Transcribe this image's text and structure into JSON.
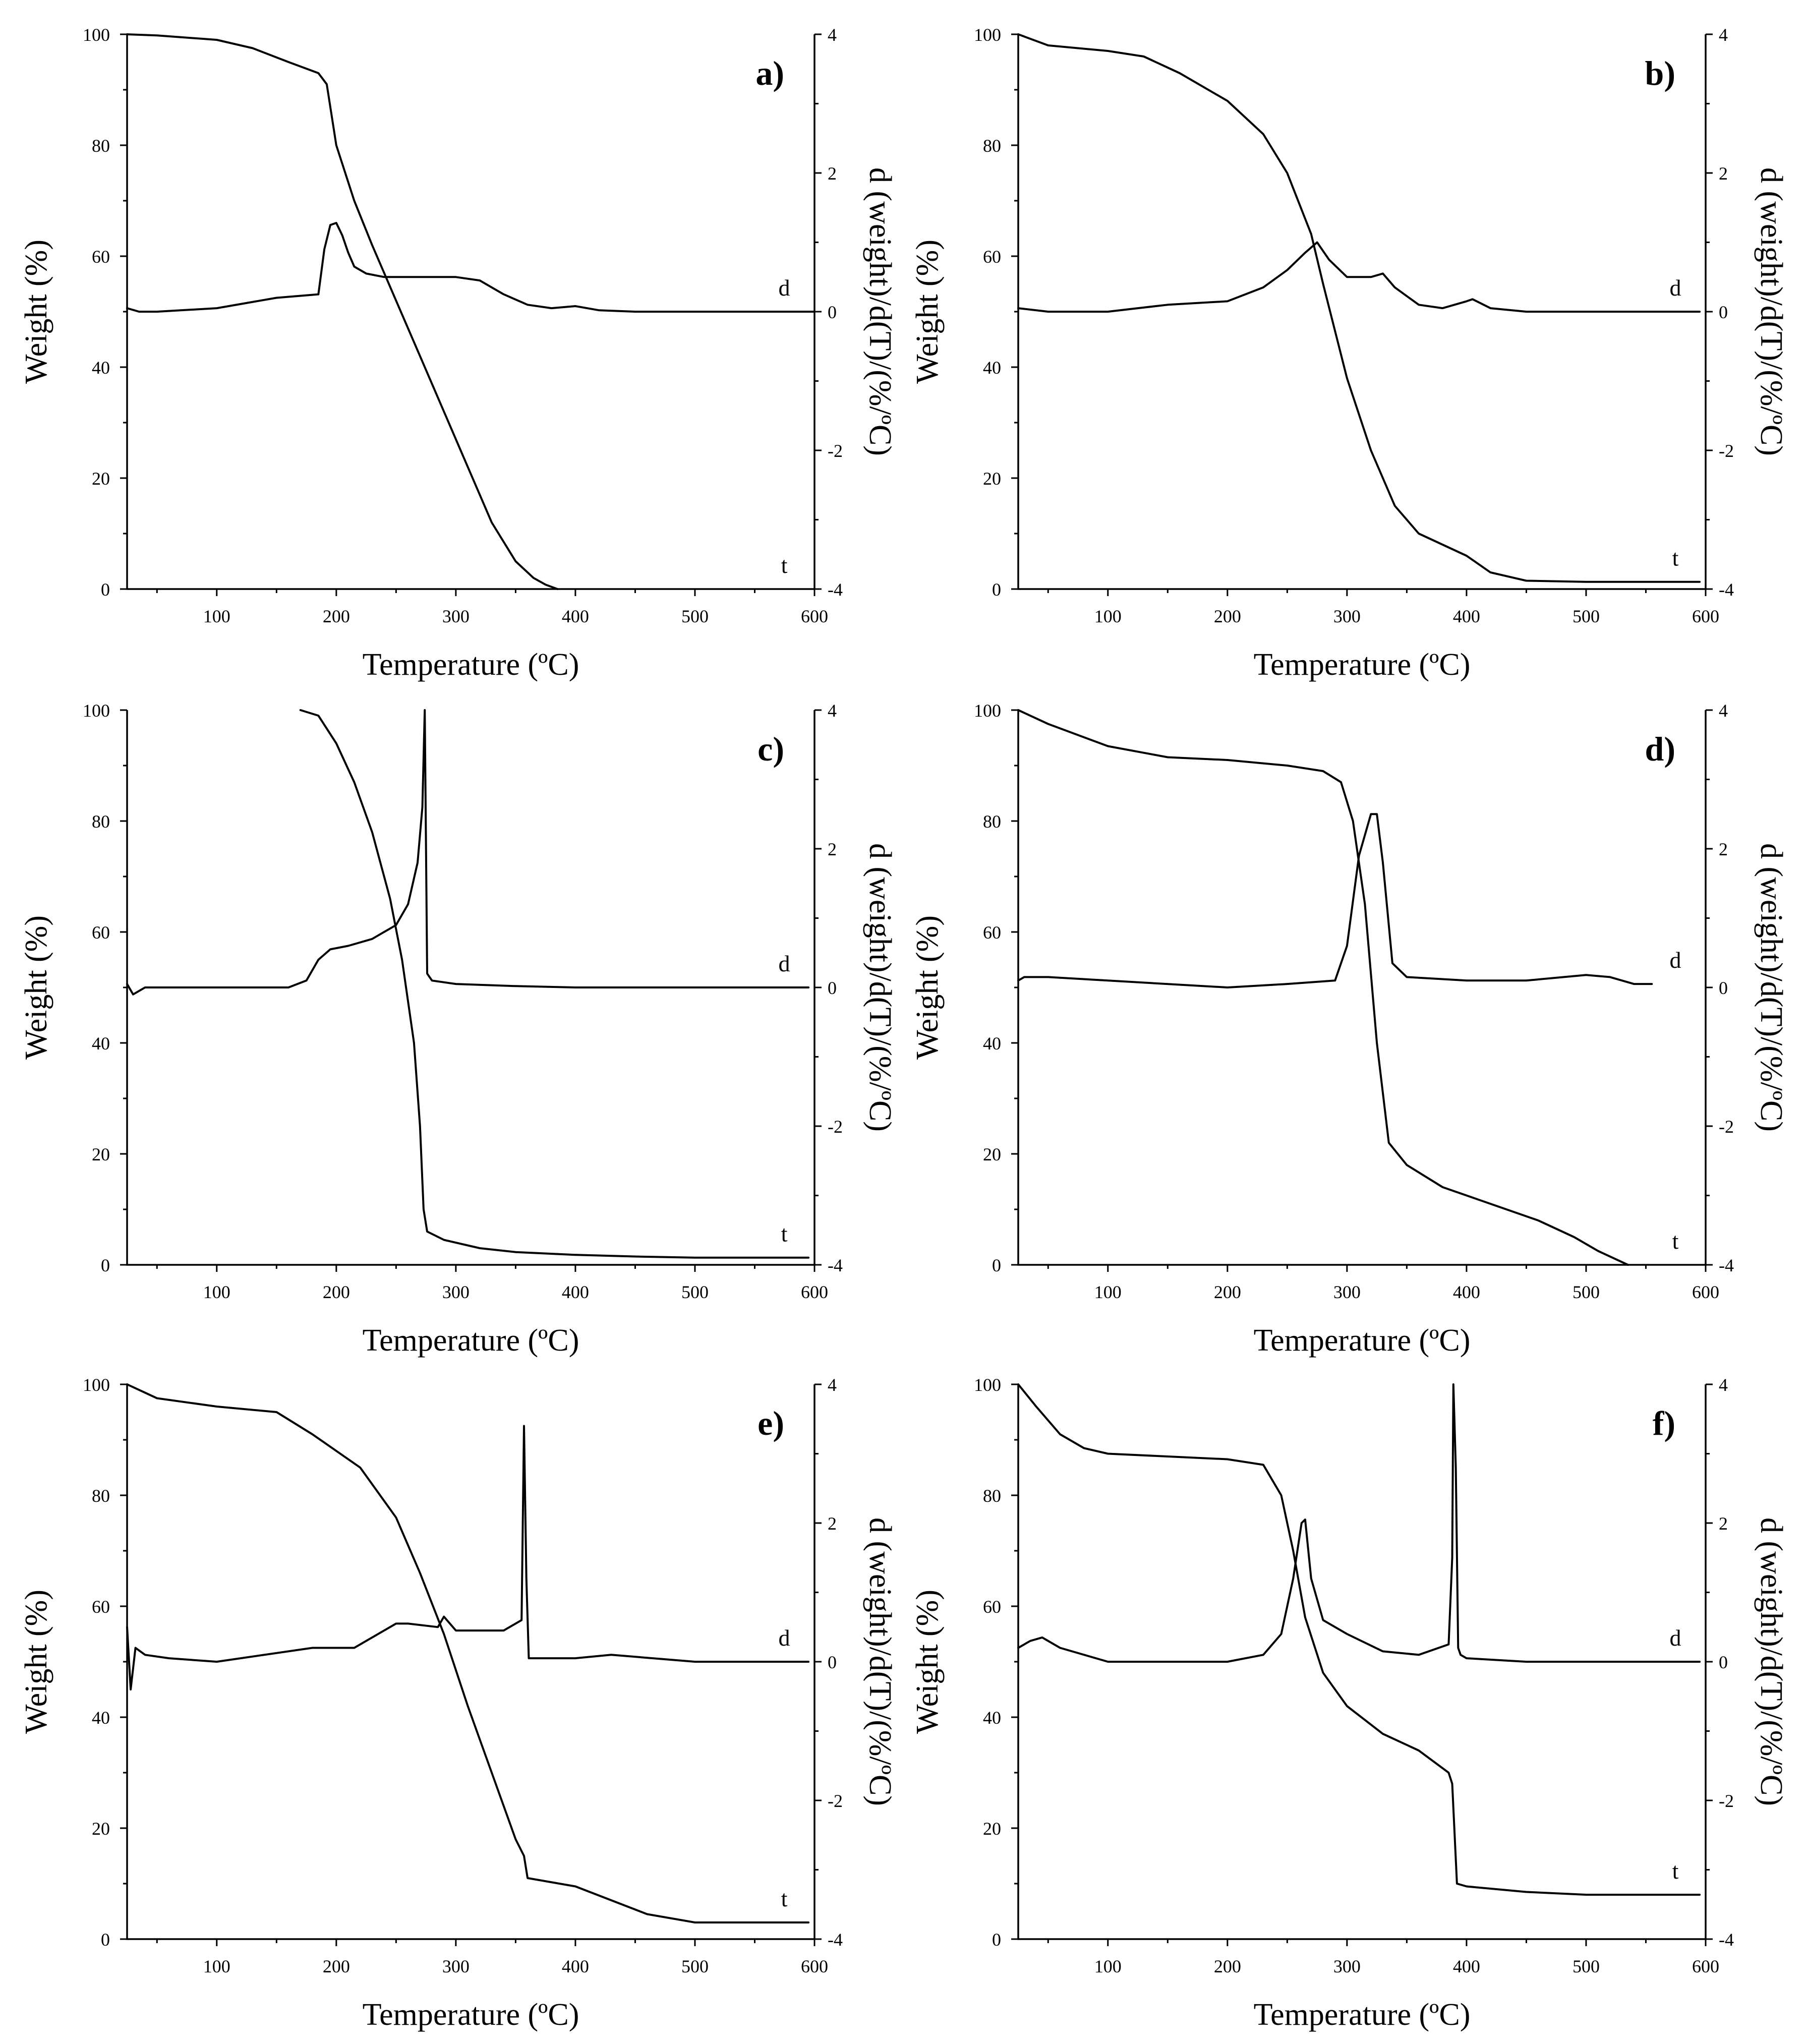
{
  "figure": {
    "description_free": true,
    "x_axis_title": "Temperature (ºC)",
    "y_left_title": "Weight (%)",
    "y_right_title": "d (weight)/d(T)/(%/ºC)"
  },
  "chart_data": [
    {
      "type": "line",
      "panel": "a)",
      "xlabel": "Temperature (ºC)",
      "ylabel": "Weight (%)",
      "y2label": "d (weight)/d(T)/(%/ºC)",
      "xlim": [
        25,
        600
      ],
      "ylim": [
        0,
        100
      ],
      "y2lim": [
        -4,
        4
      ],
      "xticks": [
        100,
        200,
        300,
        400,
        500,
        600
      ],
      "yticks": [
        0,
        20,
        40,
        60,
        80,
        100
      ],
      "y2ticks": [
        -4,
        -2,
        0,
        2,
        4
      ],
      "series": [
        {
          "name": "t",
          "axis": "left",
          "x": [
            25,
            50,
            100,
            130,
            160,
            185,
            192,
            200,
            215,
            230,
            250,
            270,
            290,
            310,
            330,
            350,
            365,
            375,
            385
          ],
          "y": [
            100,
            99.8,
            99.0,
            97.5,
            95,
            93,
            91,
            80,
            70,
            62,
            52,
            42,
            32,
            22,
            12,
            5,
            2,
            0.8,
            0
          ]
        },
        {
          "name": "d",
          "axis": "right",
          "x": [
            25,
            35,
            50,
            100,
            150,
            185,
            190,
            195,
            200,
            205,
            210,
            215,
            225,
            240,
            300,
            320,
            340,
            360,
            380,
            400,
            420,
            450,
            600
          ],
          "y": [
            0.05,
            0.0,
            0.0,
            0.05,
            0.2,
            0.25,
            0.9,
            1.25,
            1.28,
            1.1,
            0.85,
            0.65,
            0.55,
            0.5,
            0.5,
            0.45,
            0.25,
            0.1,
            0.05,
            0.08,
            0.02,
            0.0,
            0.0
          ]
        }
      ]
    },
    {
      "type": "line",
      "panel": "b)",
      "xlabel": "Temperature (ºC)",
      "ylabel": "Weight (%)",
      "y2label": "d (weight)/d(T)/(%/ºC)",
      "xlim": [
        25,
        600
      ],
      "ylim": [
        0,
        100
      ],
      "y2lim": [
        -4,
        4
      ],
      "xticks": [
        100,
        200,
        300,
        400,
        500,
        600
      ],
      "yticks": [
        0,
        20,
        40,
        60,
        80,
        100
      ],
      "y2ticks": [
        -4,
        -2,
        0,
        2,
        4
      ],
      "series": [
        {
          "name": "t",
          "axis": "left",
          "x": [
            25,
            50,
            100,
            130,
            160,
            200,
            230,
            250,
            270,
            280,
            300,
            320,
            340,
            360,
            380,
            400,
            420,
            450,
            500,
            595
          ],
          "y": [
            100,
            98,
            97,
            96,
            93,
            88,
            82,
            75,
            64,
            55,
            38,
            25,
            15,
            10,
            8,
            6,
            3,
            1.5,
            1.3,
            1.3
          ]
        },
        {
          "name": "d",
          "axis": "right",
          "x": [
            25,
            50,
            100,
            150,
            200,
            230,
            250,
            265,
            275,
            285,
            300,
            320,
            330,
            340,
            360,
            380,
            400,
            405,
            420,
            450,
            500,
            595
          ],
          "y": [
            0.05,
            0.0,
            0.0,
            0.1,
            0.15,
            0.35,
            0.6,
            0.85,
            1.0,
            0.75,
            0.5,
            0.5,
            0.55,
            0.35,
            0.1,
            0.05,
            0.15,
            0.18,
            0.05,
            0.0,
            0.0,
            0.0
          ]
        }
      ]
    },
    {
      "type": "line",
      "panel": "c)",
      "xlabel": "Temperature (ºC)",
      "ylabel": "Weight (%)",
      "y2label": "d (weight)/d(T)/(%/ºC)",
      "xlim": [
        25,
        600
      ],
      "ylim": [
        0,
        100
      ],
      "y2lim": [
        -4,
        4
      ],
      "xticks": [
        100,
        200,
        300,
        400,
        500,
        600
      ],
      "yticks": [
        0,
        20,
        40,
        60,
        80,
        100
      ],
      "y2ticks": [
        -4,
        -2,
        0,
        2,
        4
      ],
      "series": [
        {
          "name": "t",
          "axis": "left",
          "x": [
            170,
            185,
            200,
            215,
            230,
            245,
            255,
            265,
            270,
            273,
            276,
            290,
            320,
            350,
            400,
            450,
            500,
            595
          ],
          "y": [
            100,
            99,
            94,
            87,
            78,
            66,
            55,
            40,
            25,
            10,
            6,
            4.5,
            3,
            2.3,
            1.8,
            1.5,
            1.3,
            1.3
          ]
        },
        {
          "name": "d",
          "axis": "right",
          "x": [
            25,
            30,
            40,
            100,
            160,
            175,
            185,
            195,
            210,
            230,
            250,
            260,
            268,
            272,
            274,
            276,
            280,
            300,
            350,
            400,
            595
          ],
          "y": [
            0.05,
            -0.1,
            0.0,
            0.0,
            0.0,
            0.1,
            0.4,
            0.55,
            0.6,
            0.7,
            0.9,
            1.2,
            1.8,
            2.6,
            4.0,
            0.2,
            0.1,
            0.05,
            0.02,
            0.0,
            0.0
          ]
        }
      ]
    },
    {
      "type": "line",
      "panel": "d)",
      "xlabel": "Temperature (ºC)",
      "ylabel": "Weight (%)",
      "y2label": "d (weight)/d(T)/(%/ºC)",
      "xlim": [
        25,
        600
      ],
      "ylim": [
        0,
        100
      ],
      "y2lim": [
        -4,
        4
      ],
      "xticks": [
        100,
        200,
        300,
        400,
        500,
        600
      ],
      "yticks": [
        0,
        20,
        40,
        60,
        80,
        100
      ],
      "y2ticks": [
        -4,
        -2,
        0,
        2,
        4
      ],
      "series": [
        {
          "name": "t",
          "axis": "left",
          "x": [
            25,
            50,
            100,
            150,
            200,
            250,
            280,
            295,
            305,
            315,
            325,
            335,
            350,
            380,
            420,
            460,
            490,
            510,
            535
          ],
          "y": [
            100,
            97.5,
            93.5,
            91.5,
            91,
            90,
            89,
            87,
            80,
            65,
            40,
            22,
            18,
            14,
            11,
            8,
            5,
            2.5,
            0
          ]
        },
        {
          "name": "d",
          "axis": "right",
          "x": [
            25,
            30,
            50,
            100,
            200,
            250,
            290,
            300,
            310,
            320,
            325,
            330,
            338,
            350,
            400,
            450,
            500,
            520,
            540,
            555
          ],
          "y": [
            0.1,
            0.15,
            0.15,
            0.1,
            0.0,
            0.05,
            0.1,
            0.6,
            1.9,
            2.5,
            2.5,
            1.8,
            0.35,
            0.15,
            0.1,
            0.1,
            0.18,
            0.15,
            0.05,
            0.05
          ]
        }
      ]
    },
    {
      "type": "line",
      "panel": "e)",
      "xlabel": "Temperature (ºC)",
      "ylabel": "Weight (%)",
      "y2label": "d (weight)/d(T)/(%/ºC)",
      "xlim": [
        25,
        600
      ],
      "ylim": [
        0,
        100
      ],
      "y2lim": [
        -4,
        4
      ],
      "xticks": [
        100,
        200,
        300,
        400,
        500,
        600
      ],
      "yticks": [
        0,
        20,
        40,
        60,
        80,
        100
      ],
      "y2ticks": [
        -4,
        -2,
        0,
        2,
        4
      ],
      "series": [
        {
          "name": "t",
          "axis": "left",
          "x": [
            25,
            50,
            100,
            150,
            180,
            220,
            250,
            270,
            290,
            310,
            330,
            350,
            357,
            360,
            400,
            430,
            460,
            500,
            595
          ],
          "y": [
            100,
            97.5,
            96,
            95,
            91,
            85,
            76,
            66,
            55,
            42,
            30,
            18,
            15,
            11,
            9.5,
            7,
            4.5,
            3,
            3
          ]
        },
        {
          "name": "d",
          "axis": "right",
          "x": [
            25,
            28,
            32,
            40,
            60,
            100,
            180,
            215,
            250,
            260,
            285,
            290,
            300,
            340,
            355,
            357,
            359,
            361,
            400,
            430,
            500,
            595
          ],
          "y": [
            0.5,
            -0.4,
            0.2,
            0.1,
            0.05,
            0.0,
            0.2,
            0.2,
            0.55,
            0.55,
            0.5,
            0.65,
            0.45,
            0.45,
            0.6,
            3.4,
            1.2,
            0.05,
            0.05,
            0.1,
            0.0,
            0.0
          ]
        }
      ]
    },
    {
      "type": "line",
      "panel": "f)",
      "xlabel": "Temperature (ºC)",
      "ylabel": "Weight (%)",
      "y2label": "d (weight)/d(T)/(%/ºC)",
      "xlim": [
        25,
        600
      ],
      "ylim": [
        0,
        100
      ],
      "y2lim": [
        -4,
        4
      ],
      "xticks": [
        100,
        200,
        300,
        400,
        500,
        600
      ],
      "yticks": [
        0,
        20,
        40,
        60,
        80,
        100
      ],
      "y2ticks": [
        -4,
        -2,
        0,
        2,
        4
      ],
      "series": [
        {
          "name": "t",
          "axis": "left",
          "x": [
            25,
            40,
            60,
            80,
            100,
            150,
            200,
            230,
            245,
            255,
            265,
            280,
            300,
            330,
            360,
            385,
            388,
            392,
            400,
            450,
            500,
            595
          ],
          "y": [
            100,
            96,
            91,
            88.5,
            87.5,
            87,
            86.5,
            85.5,
            80,
            70,
            58,
            48,
            42,
            37,
            34,
            30,
            28,
            10,
            9.5,
            8.5,
            8,
            8
          ]
        },
        {
          "name": "d",
          "axis": "right",
          "x": [
            25,
            35,
            45,
            60,
            100,
            200,
            230,
            245,
            255,
            262,
            265,
            270,
            280,
            300,
            330,
            360,
            385,
            388,
            389,
            391,
            393,
            395,
            400,
            450,
            595
          ],
          "y": [
            0.2,
            0.3,
            0.35,
            0.2,
            0.0,
            0.0,
            0.1,
            0.4,
            1.2,
            2.0,
            2.05,
            1.2,
            0.6,
            0.4,
            0.15,
            0.1,
            0.25,
            1.5,
            4.0,
            2.8,
            0.2,
            0.1,
            0.05,
            0.0,
            0.0
          ]
        }
      ]
    }
  ]
}
